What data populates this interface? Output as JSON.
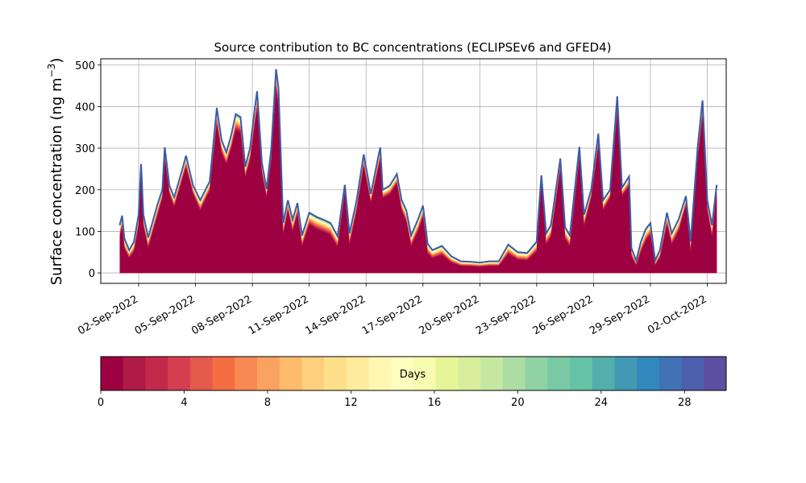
{
  "chart_data": [
    {
      "type": "area",
      "title": "Source contribution to BC concentrations (ECLIPSEv6 and GFED4)",
      "xlabel": "",
      "ylabel": "Surface concentration (ng m",
      "ylabel_sup": "−3",
      "ylabel_close": ")",
      "x_start": "2022-09-01",
      "x_end": "2022-10-02",
      "xlim": [
        "2022-08-31",
        "2022-10-03"
      ],
      "ylim": [
        -25,
        515
      ],
      "y_ticks": [
        0,
        100,
        200,
        300,
        400,
        500
      ],
      "x_ticks": [
        "02-Sep-2022",
        "05-Sep-2022",
        "08-Sep-2022",
        "11-Sep-2022",
        "14-Sep-2022",
        "17-Sep-2022",
        "20-Sep-2022",
        "23-Sep-2022",
        "26-Sep-2022",
        "29-Sep-2022",
        "02-Oct-2022"
      ],
      "grid": true,
      "stack_label": "Days",
      "total": [
        [
          "2022-09-01T00:00",
          115
        ],
        [
          "2022-09-01T03:00",
          138
        ],
        [
          "2022-09-01T06:00",
          82
        ],
        [
          "2022-09-01T12:00",
          55
        ],
        [
          "2022-09-01T18:00",
          75
        ],
        [
          "2022-09-02T00:00",
          140
        ],
        [
          "2022-09-02T03:00",
          262
        ],
        [
          "2022-09-02T06:00",
          140
        ],
        [
          "2022-09-02T12:00",
          85
        ],
        [
          "2022-09-03T00:00",
          165
        ],
        [
          "2022-09-03T06:00",
          200
        ],
        [
          "2022-09-03T09:00",
          302
        ],
        [
          "2022-09-03T15:00",
          210
        ],
        [
          "2022-09-03T21:00",
          182
        ],
        [
          "2022-09-04T06:00",
          240
        ],
        [
          "2022-09-04T12:00",
          282
        ],
        [
          "2022-09-04T21:00",
          210
        ],
        [
          "2022-09-05T06:00",
          175
        ],
        [
          "2022-09-05T18:00",
          220
        ],
        [
          "2022-09-06T03:00",
          397
        ],
        [
          "2022-09-06T09:00",
          320
        ],
        [
          "2022-09-06T15:00",
          290
        ],
        [
          "2022-09-06T21:00",
          330
        ],
        [
          "2022-09-07T03:00",
          382
        ],
        [
          "2022-09-07T09:00",
          375
        ],
        [
          "2022-09-07T15:00",
          255
        ],
        [
          "2022-09-07T21:00",
          300
        ],
        [
          "2022-09-08T03:00",
          395
        ],
        [
          "2022-09-08T06:00",
          437
        ],
        [
          "2022-09-08T12:00",
          265
        ],
        [
          "2022-09-08T18:00",
          202
        ],
        [
          "2022-09-09T00:00",
          300
        ],
        [
          "2022-09-09T06:00",
          490
        ],
        [
          "2022-09-09T09:00",
          445
        ],
        [
          "2022-09-09T15:00",
          120
        ],
        [
          "2022-09-09T21:00",
          175
        ],
        [
          "2022-09-10T03:00",
          128
        ],
        [
          "2022-09-10T09:00",
          168
        ],
        [
          "2022-09-10T15:00",
          90
        ],
        [
          "2022-09-11T00:00",
          145
        ],
        [
          "2022-09-11T09:00",
          135
        ],
        [
          "2022-09-11T18:00",
          128
        ],
        [
          "2022-09-12T03:00",
          120
        ],
        [
          "2022-09-12T12:00",
          88
        ],
        [
          "2022-09-12T21:00",
          212
        ],
        [
          "2022-09-13T03:00",
          95
        ],
        [
          "2022-09-13T12:00",
          175
        ],
        [
          "2022-09-13T21:00",
          285
        ],
        [
          "2022-09-14T06:00",
          190
        ],
        [
          "2022-09-14T15:00",
          275
        ],
        [
          "2022-09-14T18:00",
          302
        ],
        [
          "2022-09-14T21:00",
          200
        ],
        [
          "2022-09-15T06:00",
          210
        ],
        [
          "2022-09-15T15:00",
          238
        ],
        [
          "2022-09-15T21:00",
          175
        ],
        [
          "2022-09-16T03:00",
          150
        ],
        [
          "2022-09-16T09:00",
          90
        ],
        [
          "2022-09-16T18:00",
          130
        ],
        [
          "2022-09-17T00:00",
          162
        ],
        [
          "2022-09-17T06:00",
          70
        ],
        [
          "2022-09-17T12:00",
          55
        ],
        [
          "2022-09-18T00:00",
          65
        ],
        [
          "2022-09-18T12:00",
          40
        ],
        [
          "2022-09-19T00:00",
          28
        ],
        [
          "2022-09-19T12:00",
          27
        ],
        [
          "2022-09-20T00:00",
          25
        ],
        [
          "2022-09-20T12:00",
          28
        ],
        [
          "2022-09-21T00:00",
          28
        ],
        [
          "2022-09-21T12:00",
          68
        ],
        [
          "2022-09-22T00:00",
          50
        ],
        [
          "2022-09-22T12:00",
          48
        ],
        [
          "2022-09-23T00:00",
          75
        ],
        [
          "2022-09-23T06:00",
          235
        ],
        [
          "2022-09-23T12:00",
          95
        ],
        [
          "2022-09-23T18:00",
          115
        ],
        [
          "2022-09-24T06:00",
          275
        ],
        [
          "2022-09-24T12:00",
          110
        ],
        [
          "2022-09-24T18:00",
          90
        ],
        [
          "2022-09-25T06:00",
          303
        ],
        [
          "2022-09-25T12:00",
          140
        ],
        [
          "2022-09-25T21:00",
          200
        ],
        [
          "2022-09-26T06:00",
          335
        ],
        [
          "2022-09-26T12:00",
          175
        ],
        [
          "2022-09-26T21:00",
          200
        ],
        [
          "2022-09-27T06:00",
          425
        ],
        [
          "2022-09-27T12:00",
          205
        ],
        [
          "2022-09-27T21:00",
          232
        ],
        [
          "2022-09-28T00:00",
          60
        ],
        [
          "2022-09-28T06:00",
          30
        ],
        [
          "2022-09-28T12:00",
          75
        ],
        [
          "2022-09-28T18:00",
          105
        ],
        [
          "2022-09-29T00:00",
          120
        ],
        [
          "2022-09-29T06:00",
          30
        ],
        [
          "2022-09-29T12:00",
          55
        ],
        [
          "2022-09-29T21:00",
          145
        ],
        [
          "2022-09-30T03:00",
          95
        ],
        [
          "2022-09-30T12:00",
          130
        ],
        [
          "2022-09-30T21:00",
          185
        ],
        [
          "2022-10-01T03:00",
          75
        ],
        [
          "2022-10-01T12:00",
          305
        ],
        [
          "2022-10-01T18:00",
          415
        ],
        [
          "2022-10-02T00:00",
          175
        ],
        [
          "2022-10-02T06:00",
          115
        ],
        [
          "2022-10-02T12:00",
          212
        ]
      ],
      "oldest_band_color": "#3a5ba8",
      "colormap": "Spectral"
    },
    {
      "type": "colorbar",
      "label": "Days",
      "range": [
        0,
        30
      ],
      "ticks": [
        0,
        4,
        8,
        12,
        16,
        20,
        24,
        28
      ],
      "colors": [
        "#9e0142",
        "#b01a47",
        "#c2294a",
        "#d53e4f",
        "#e45a4b",
        "#f46d43",
        "#f78a52",
        "#fba262",
        "#fdbb6c",
        "#fed07e",
        "#fee08b",
        "#feeb9d",
        "#fff7b2",
        "#fffebe",
        "#f7fbb0",
        "#e6f598",
        "#d7ef9c",
        "#c6e79f",
        "#abdda4",
        "#90d2a4",
        "#79c9a4",
        "#66c2a5",
        "#54aeac",
        "#4299b4",
        "#3288bd",
        "#3f73b5",
        "#4c5fac",
        "#5e4fa2"
      ]
    }
  ]
}
